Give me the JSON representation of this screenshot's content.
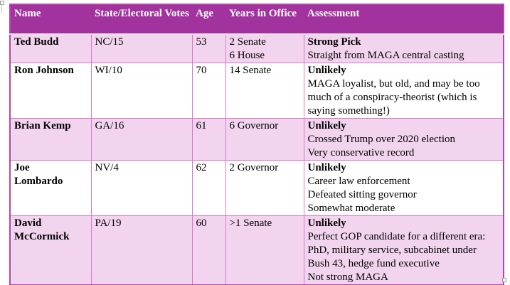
{
  "colors": {
    "header_bg": "#a2339e",
    "header_text": "#ffffff",
    "row_pink": "#f2d4ee",
    "row_white": "#ffffff",
    "grid_border": "#d779cb",
    "outer_border": "#b546aa",
    "header_divider": "#f2e2ef",
    "body_text": "#000000"
  },
  "table": {
    "headers": [
      "Name",
      "State/Electoral Votes",
      "Age",
      "Years in Office",
      "Assessment"
    ],
    "rows": [
      {
        "name": "Ted Budd",
        "state_electoral": "NC/15",
        "age": "53",
        "years_in_office": "2 Senate\n6 House",
        "assessment_title": "Strong Pick",
        "assessment_body": "Straight from MAGA central casting"
      },
      {
        "name": "Ron Johnson",
        "state_electoral": "WI/10",
        "age": "70",
        "years_in_office": "14 Senate",
        "assessment_title": "Unlikely",
        "assessment_body": "MAGA loyalist, but old, and may be too much of a conspiracy-theorist (which is saying something!)"
      },
      {
        "name": "Brian Kemp",
        "state_electoral": "GA/16",
        "age": "61",
        "years_in_office": "6 Governor",
        "assessment_title": "Unlikely",
        "assessment_body": "Crossed Trump over 2020 election\nVery conservative record"
      },
      {
        "name": "Joe\nLombardo",
        "state_electoral": "NV/4",
        "age": "62",
        "years_in_office": "2 Governor",
        "assessment_title": "Unlikely",
        "assessment_body": "Career law enforcement\nDefeated sitting governor\nSomewhat moderate"
      },
      {
        "name": "David\nMcCormick",
        "state_electoral": "PA/19",
        "age": "60",
        "years_in_office": ">1 Senate",
        "assessment_title": "Unlikely",
        "assessment_body": "Perfect GOP candidate for a different era: PhD, military service, subcabinet under Bush 43, hedge fund executive\nNot strong MAGA"
      }
    ]
  }
}
